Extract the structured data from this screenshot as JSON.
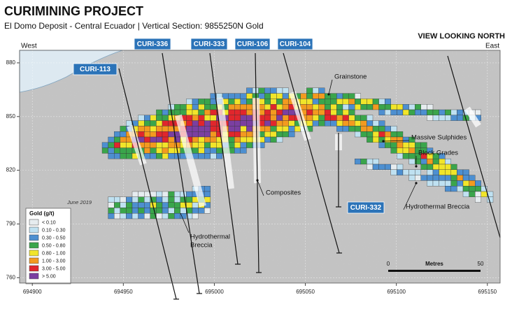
{
  "header": {
    "title": "CURIMINING PROJECT",
    "subtitle": "El Domo Deposit - Central Ecuador  |  Vertical Section: 9855250N Gold",
    "view": "VIEW LOOKING NORTH"
  },
  "section": {
    "west": "West",
    "east": "East",
    "xlim": [
      694893,
      695157
    ],
    "ylim": [
      757,
      887
    ],
    "xticks": [
      694900,
      694950,
      695000,
      695050,
      695100,
      695150
    ],
    "yticks": [
      760,
      790,
      820,
      850,
      880
    ],
    "date": "June 2019"
  },
  "drill_holes": [
    "CURI-113",
    "CURI-336",
    "CURI-333",
    "CURI-106",
    "CURI-104",
    "CURI-332"
  ],
  "annotations": [
    "Grainstone",
    "Massive Sulphides",
    "Block Grades",
    "Composites",
    "Hydrothermal Breccia"
  ],
  "breccia_left": [
    "Hydrothermal",
    "Breccia"
  ],
  "legend": {
    "title": "Gold (g/t)",
    "items": [
      {
        "label": "< 0.10",
        "color": "#e6ecef"
      },
      {
        "label": "0.10 - 0.30",
        "color": "#bfe1f1"
      },
      {
        "label": "0.30 - 0.50",
        "color": "#4d8fd0"
      },
      {
        "label": "0.50 - 0.80",
        "color": "#3aa54b"
      },
      {
        "label": "0.80 - 1.00",
        "color": "#f1e52a"
      },
      {
        "label": "1.00 - 3.00",
        "color": "#f39a1f"
      },
      {
        "label": "3.00 - 5.00",
        "color": "#e1262c"
      },
      {
        "label": "> 5.00",
        "color": "#7b3fa1"
      }
    ]
  },
  "scale_bar": {
    "start": "0",
    "unit": "Metres",
    "end": "50"
  }
}
